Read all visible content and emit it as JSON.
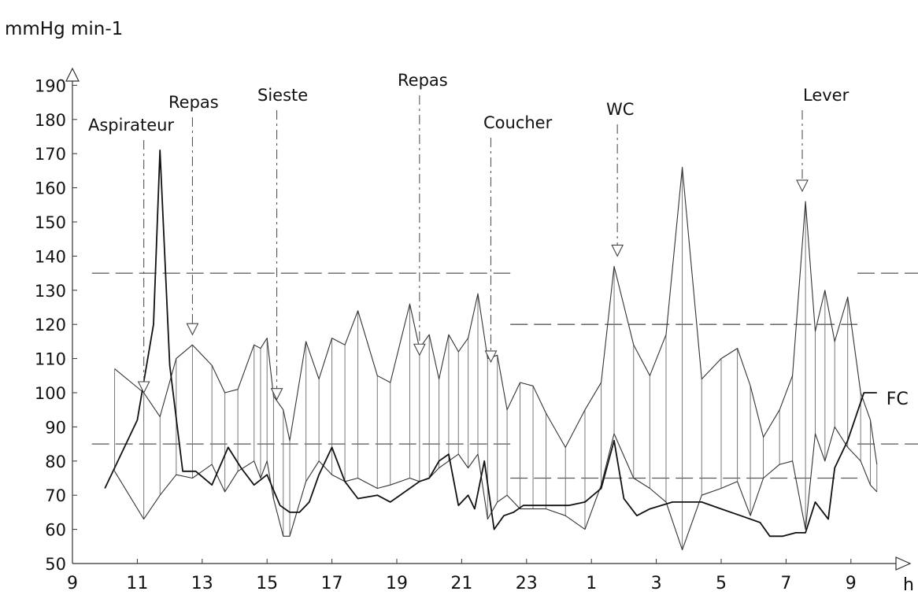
{
  "chart_data": {
    "type": "line",
    "ylabel": "mmHg min-1",
    "xlabel": "h",
    "ylim": [
      50,
      190
    ],
    "yticks": [
      50,
      60,
      70,
      80,
      90,
      100,
      110,
      120,
      130,
      140,
      150,
      160,
      170,
      180,
      190
    ],
    "yticklabels": [
      "50",
      "60",
      "70",
      "80",
      "90",
      "100",
      "110",
      "120",
      "130",
      "140",
      "150",
      "160",
      "170",
      "180",
      "190"
    ],
    "xticklabels": [
      "9",
      "11",
      "13",
      "15",
      "17",
      "19",
      "21",
      "23",
      "1",
      "3",
      "5",
      "7",
      "9"
    ],
    "grid": false,
    "series": [
      {
        "name": "",
        "style": "systolic",
        "x": [
          10.3,
          11.2,
          11.7,
          12.2,
          12.7,
          13.3,
          13.7,
          14.1,
          14.6,
          14.8,
          15.0,
          15.2,
          15.5,
          15.7,
          16.2,
          16.6,
          17.0,
          17.4,
          17.8,
          18.4,
          18.8,
          19.4,
          19.7,
          20.0,
          20.3,
          20.6,
          20.9,
          21.2,
          21.5,
          21.8,
          22.1,
          22.4,
          22.8,
          23.2,
          23.6,
          24.2,
          24.8,
          25.3,
          25.7,
          26.3,
          26.8,
          27.3,
          27.8,
          28.4,
          29.0,
          29.5,
          29.9,
          30.3,
          30.8,
          31.2,
          31.6,
          31.9,
          32.2,
          32.5,
          32.9,
          33.3,
          33.6,
          33.8
        ],
        "y": [
          107,
          100,
          93,
          110,
          114,
          108,
          100,
          101,
          114,
          113,
          116,
          99,
          95,
          86,
          115,
          104,
          116,
          114,
          124,
          105,
          103,
          126,
          113,
          117,
          104,
          117,
          112,
          116,
          129,
          110,
          111,
          95,
          103,
          102,
          94,
          84,
          95,
          103,
          137,
          114,
          105,
          117,
          166,
          104,
          110,
          113,
          102,
          87,
          95,
          105,
          156,
          118,
          130,
          115,
          128,
          100,
          92,
          79
        ]
      },
      {
        "name": "",
        "style": "diastolic",
        "x": [
          10.3,
          11.2,
          11.7,
          12.2,
          12.7,
          13.3,
          13.7,
          14.1,
          14.6,
          14.8,
          15.0,
          15.2,
          15.5,
          15.7,
          16.2,
          16.6,
          17.0,
          17.4,
          17.8,
          18.4,
          18.8,
          19.4,
          19.7,
          20.0,
          20.3,
          20.6,
          20.9,
          21.2,
          21.5,
          21.8,
          22.1,
          22.4,
          22.8,
          23.2,
          23.6,
          24.2,
          24.8,
          25.3,
          25.7,
          26.3,
          26.8,
          27.3,
          27.8,
          28.4,
          29.0,
          29.5,
          29.9,
          30.3,
          30.8,
          31.2,
          31.6,
          31.9,
          32.2,
          32.5,
          32.9,
          33.3,
          33.6,
          33.8
        ],
        "y": [
          77,
          63,
          70,
          76,
          75,
          79,
          71,
          77,
          80,
          75,
          80,
          69,
          58,
          58,
          74,
          80,
          76,
          74,
          75,
          72,
          73,
          75,
          74,
          75,
          78,
          80,
          82,
          78,
          82,
          63,
          68,
          70,
          66,
          66,
          66,
          64,
          60,
          73,
          88,
          75,
          72,
          68,
          54,
          70,
          72,
          74,
          64,
          75,
          79,
          80,
          60,
          88,
          80,
          90,
          84,
          80,
          73,
          71
        ]
      },
      {
        "name": "FC",
        "style": "heart-rate",
        "x": [
          10.0,
          11.0,
          11.5,
          11.7,
          12.0,
          12.4,
          12.8,
          13.3,
          13.8,
          14.2,
          14.6,
          15.0,
          15.4,
          15.7,
          16.0,
          16.3,
          16.6,
          17.0,
          17.4,
          17.8,
          18.4,
          18.8,
          19.4,
          19.7,
          20.0,
          20.3,
          20.6,
          20.9,
          21.2,
          21.4,
          21.7,
          22.0,
          22.3,
          22.6,
          22.9,
          23.3,
          23.8,
          24.3,
          24.8,
          25.3,
          25.7,
          26.0,
          26.4,
          26.8,
          27.5,
          28.4,
          29.0,
          29.6,
          30.2,
          30.5,
          30.9,
          31.3,
          31.6,
          31.9,
          32.3,
          32.5,
          32.9,
          33.4,
          33.8
        ],
        "y": [
          72,
          92,
          120,
          171,
          108,
          77,
          77,
          73,
          84,
          78,
          73,
          76,
          67,
          65,
          65,
          68,
          76,
          84,
          74,
          69,
          70,
          68,
          72,
          74,
          75,
          80,
          82,
          67,
          70,
          66,
          80,
          60,
          64,
          65,
          67,
          67,
          67,
          67,
          68,
          72,
          86,
          69,
          64,
          66,
          68,
          68,
          66,
          64,
          62,
          58,
          58,
          59,
          59,
          68,
          63,
          78,
          86,
          100,
          100
        ]
      }
    ],
    "reference_lines": [
      {
        "y": 135,
        "x_from": 9.6,
        "x_to": 22.5,
        "style": "long-dash"
      },
      {
        "y": 85,
        "x_from": 9.6,
        "x_to": 22.5,
        "style": "long-dash"
      },
      {
        "y": 120,
        "x_from": 22.5,
        "x_to": 33.2,
        "style": "long-dash"
      },
      {
        "y": 75,
        "x_from": 22.5,
        "x_to": 33.2,
        "style": "long-dash"
      },
      {
        "y": 135,
        "x_from": 33.2,
        "x_to": 35.1,
        "style": "long-dash"
      },
      {
        "y": 85,
        "x_from": 33.2,
        "x_to": 35.1,
        "style": "long-dash"
      }
    ],
    "annotations": [
      {
        "text": "Aspirateur",
        "x": 11.2,
        "y": 100
      },
      {
        "text": "Repas",
        "x": 12.7,
        "y": 117
      },
      {
        "text": "Sieste",
        "x": 15.3,
        "y": 98
      },
      {
        "text": "Repas",
        "x": 19.7,
        "y": 111
      },
      {
        "text": "Coucher",
        "x": 21.9,
        "y": 109
      },
      {
        "text": "WC",
        "x": 25.8,
        "y": 140
      },
      {
        "text": "Lever",
        "x": 31.5,
        "y": 159
      }
    ],
    "series_label": {
      "text": "FC",
      "x": 33.8,
      "y": 100
    }
  }
}
